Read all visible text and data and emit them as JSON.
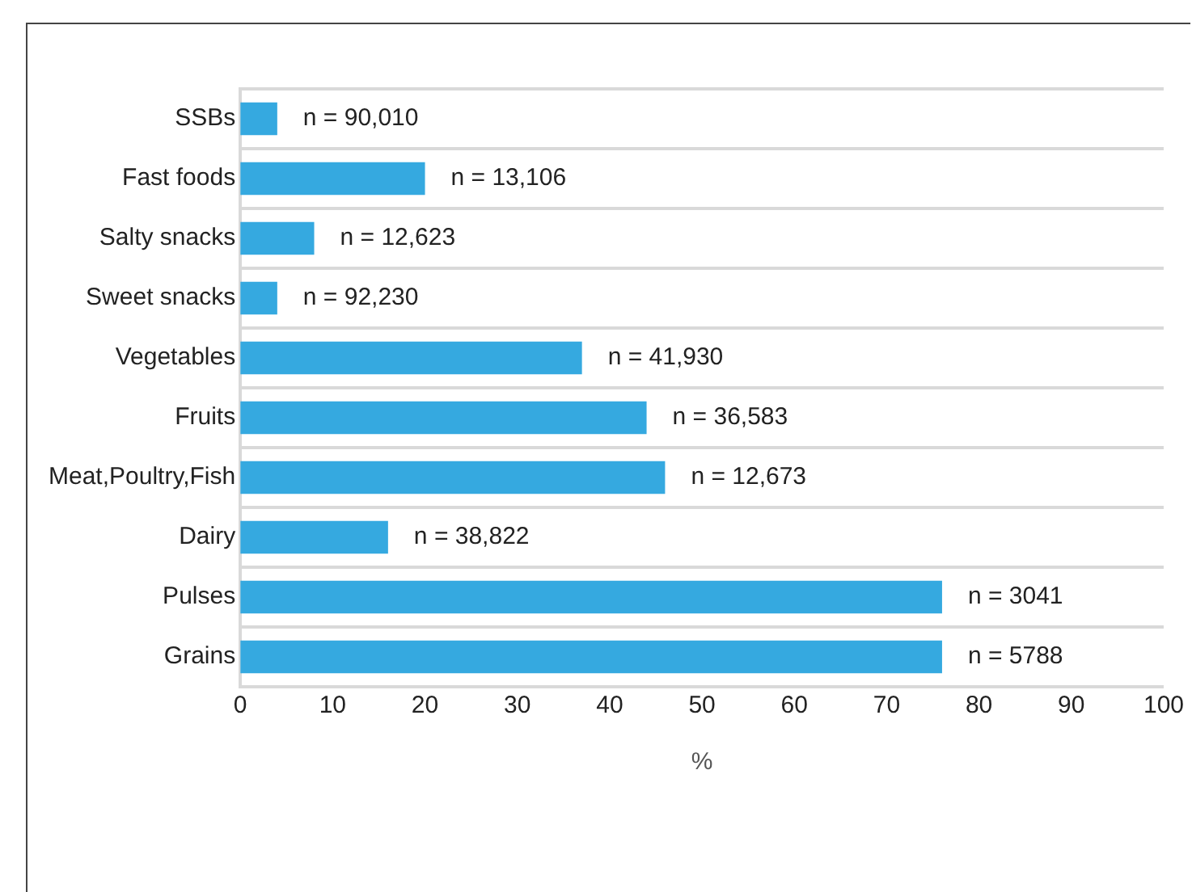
{
  "chart_data": {
    "type": "bar",
    "orientation": "horizontal",
    "xlabel": "%",
    "categories": [
      "SSBs",
      "Fast foods",
      "Salty snacks",
      "Sweet snacks",
      "Vegetables",
      "Fruits",
      "Meat,Poultry,Fish",
      "Dairy",
      "Pulses",
      "Grains"
    ],
    "values": [
      4,
      20,
      8,
      4,
      37,
      44,
      46,
      16,
      76,
      76
    ],
    "color": "#35a9e0",
    "xlim": [
      0,
      100
    ],
    "xticks": [
      0,
      10,
      20,
      30,
      40,
      50,
      60,
      70,
      80,
      90,
      100
    ],
    "grid": "y",
    "legend": false,
    "annotations": [
      {
        "text": "n = 90,010",
        "x": 4,
        "y": "SSBs"
      },
      {
        "text": "n = 13,106",
        "x": 20,
        "y": "Fast foods"
      },
      {
        "text": "n = 12,623",
        "x": 8,
        "y": "Salty snacks"
      },
      {
        "text": "n = 92,230",
        "x": 4,
        "y": "Sweet snacks"
      },
      {
        "text": "n = 41,930",
        "x": 37,
        "y": "Vegetables"
      },
      {
        "text": "n = 36,583",
        "x": 44,
        "y": "Fruits"
      },
      {
        "text": "n = 12,673",
        "x": 46,
        "y": "Meat,Poultry,Fish"
      },
      {
        "text": "n = 38,822",
        "x": 16,
        "y": "Dairy"
      },
      {
        "text": "n = 3041",
        "x": 76,
        "y": "Pulses"
      },
      {
        "text": "n = 5788",
        "x": 76,
        "y": "Grains"
      }
    ]
  }
}
